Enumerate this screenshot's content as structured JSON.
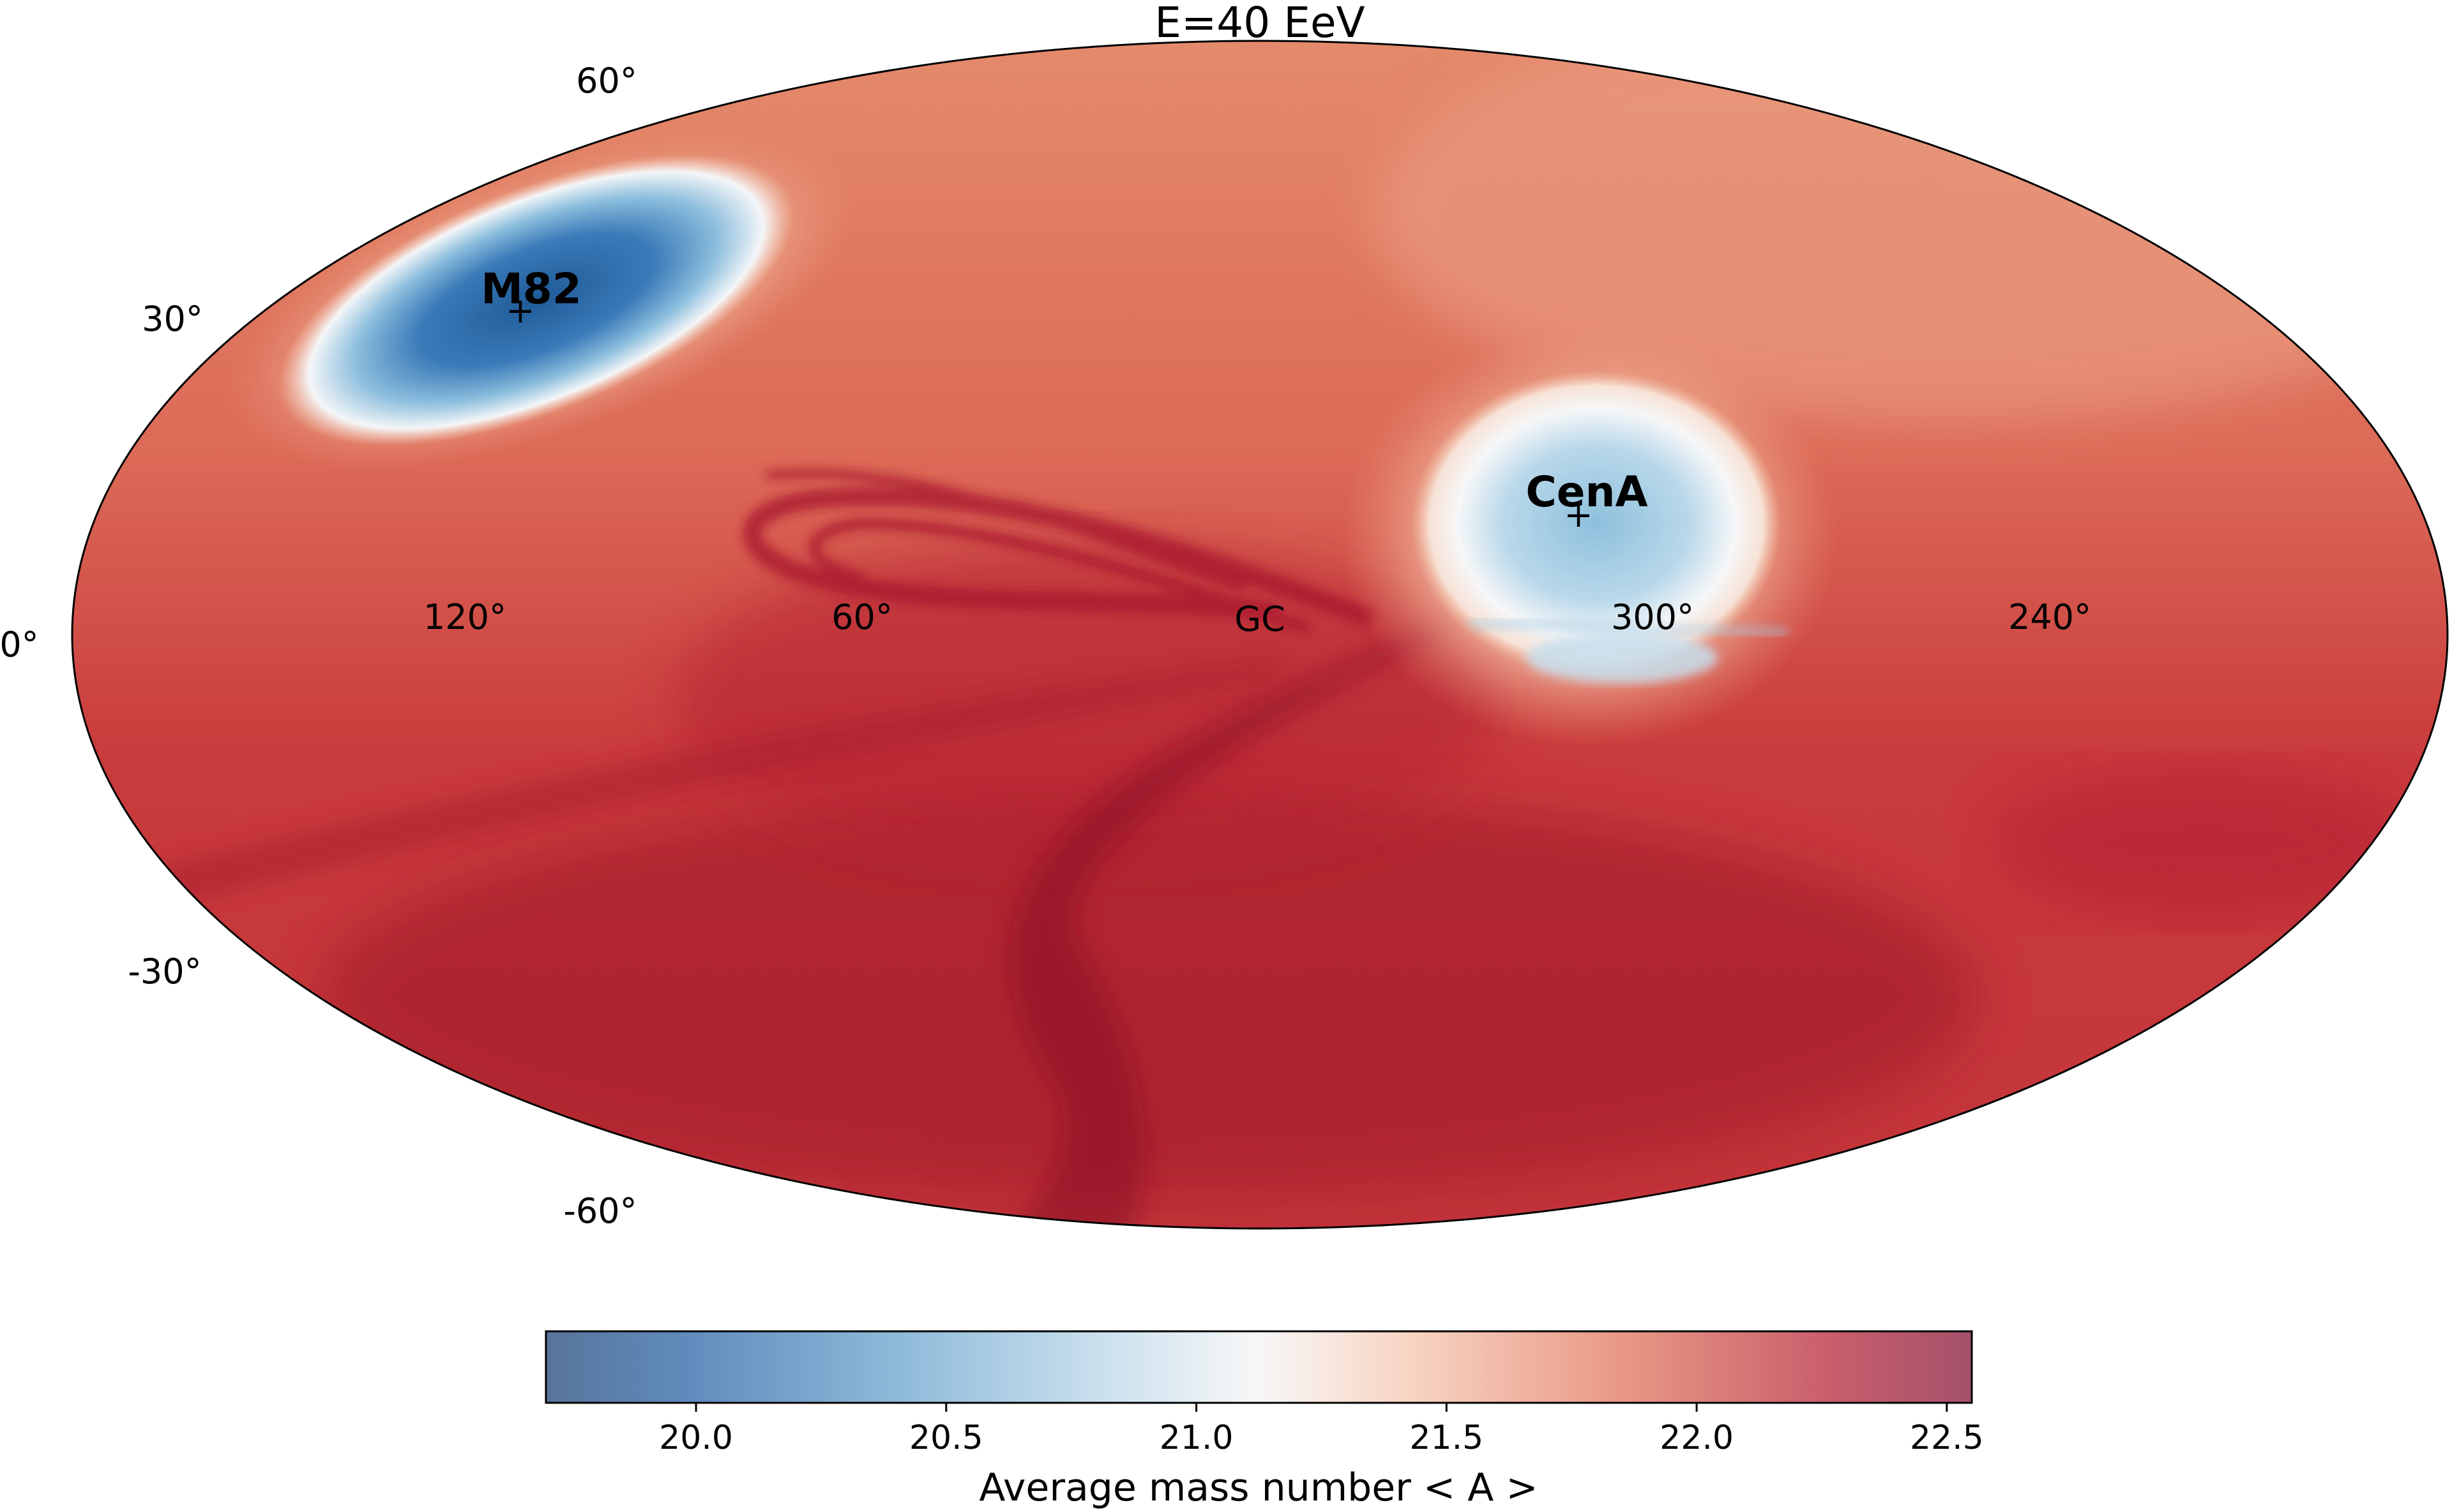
{
  "chart_data": {
    "type": "heatmap",
    "projection": "mollweide",
    "title": "E=40 EeV",
    "lon_tick_labels": [
      "120°",
      "60°",
      "GC",
      "300°",
      "240°"
    ],
    "lon_tick_values": [
      120,
      60,
      0,
      300,
      240
    ],
    "lat_tick_labels": [
      "60°",
      "30°",
      "0°",
      "-30°",
      "-60°"
    ],
    "lat_tick_values": [
      60,
      30,
      0,
      -30,
      -60
    ],
    "sources": [
      {
        "name": "M82",
        "lon": 141.4,
        "lat": 40.6
      },
      {
        "name": "CenA",
        "lon": 309.5,
        "lat": 19.4
      }
    ],
    "colorbar": {
      "label": "Average mass number < A >",
      "min": 19.7,
      "max": 22.55,
      "ticks": [
        20.0,
        20.5,
        21.0,
        21.5,
        22.0,
        22.5
      ],
      "tick_labels": [
        "20.0",
        "20.5",
        "21.0",
        "21.5",
        "22.0",
        "22.5"
      ],
      "colormap": "RdBu_r"
    },
    "field_features": [
      {
        "type": "blob",
        "name": "M82 deficit",
        "lon": 138,
        "lat": 38,
        "value": 19.8
      },
      {
        "type": "blob",
        "name": "CenA deficit",
        "lon": 308,
        "lat": 17,
        "value": 20.4
      },
      {
        "type": "band",
        "name": "dark streak south",
        "value": 22.5
      }
    ],
    "background_value": 21.9
  }
}
